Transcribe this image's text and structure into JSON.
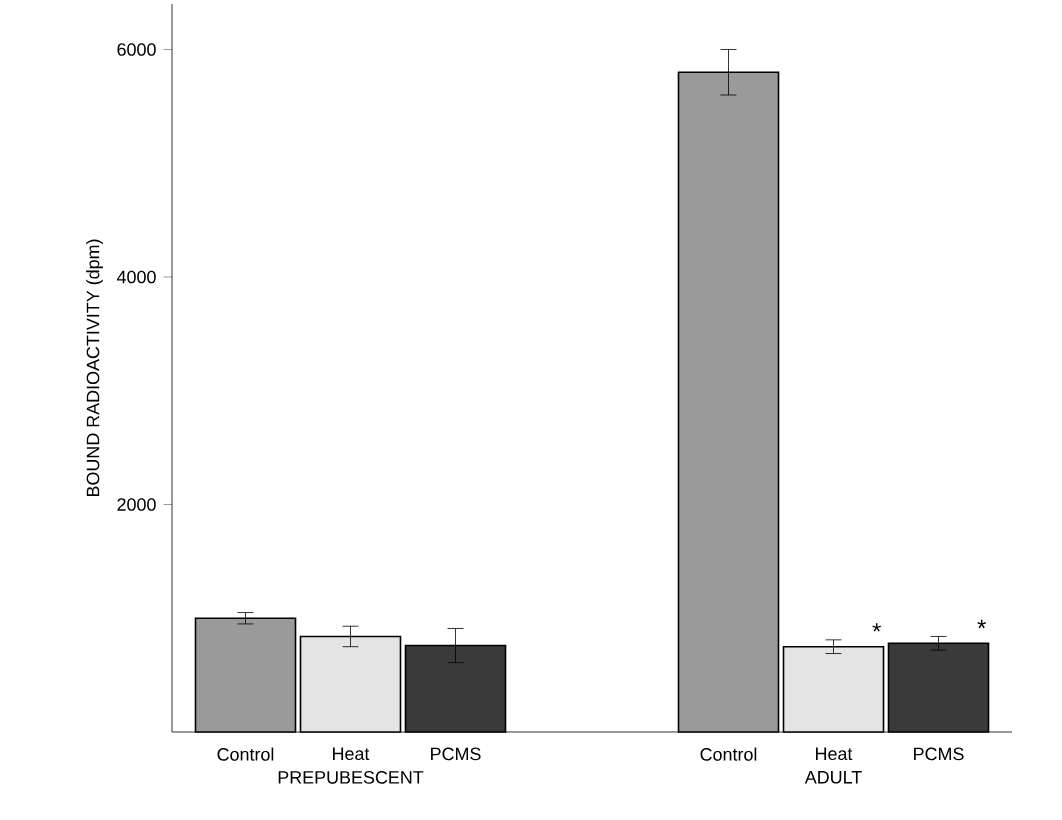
{
  "chart_data": {
    "type": "bar",
    "ylabel": "BOUND RADIOACTIVITY (dpm)",
    "categories": [
      "Control",
      "Heat",
      "PCMS",
      "Control",
      "Heat",
      "PCMS"
    ],
    "values": [
      1000,
      840,
      760,
      5800,
      750,
      780
    ],
    "errors": [
      50,
      90,
      150,
      200,
      60,
      60
    ],
    "colors": [
      "#9a9a9a",
      "#e4e4e4",
      "#3a3a3a",
      "#9a9a9a",
      "#e4e4e4",
      "#3a3a3a"
    ],
    "ylim": [
      0,
      6400
    ],
    "yticks": [
      2000,
      4000,
      6000
    ],
    "grid": false,
    "annotations": [
      "PREPUBESCENT",
      "ADULT",
      "*",
      "*"
    ]
  }
}
